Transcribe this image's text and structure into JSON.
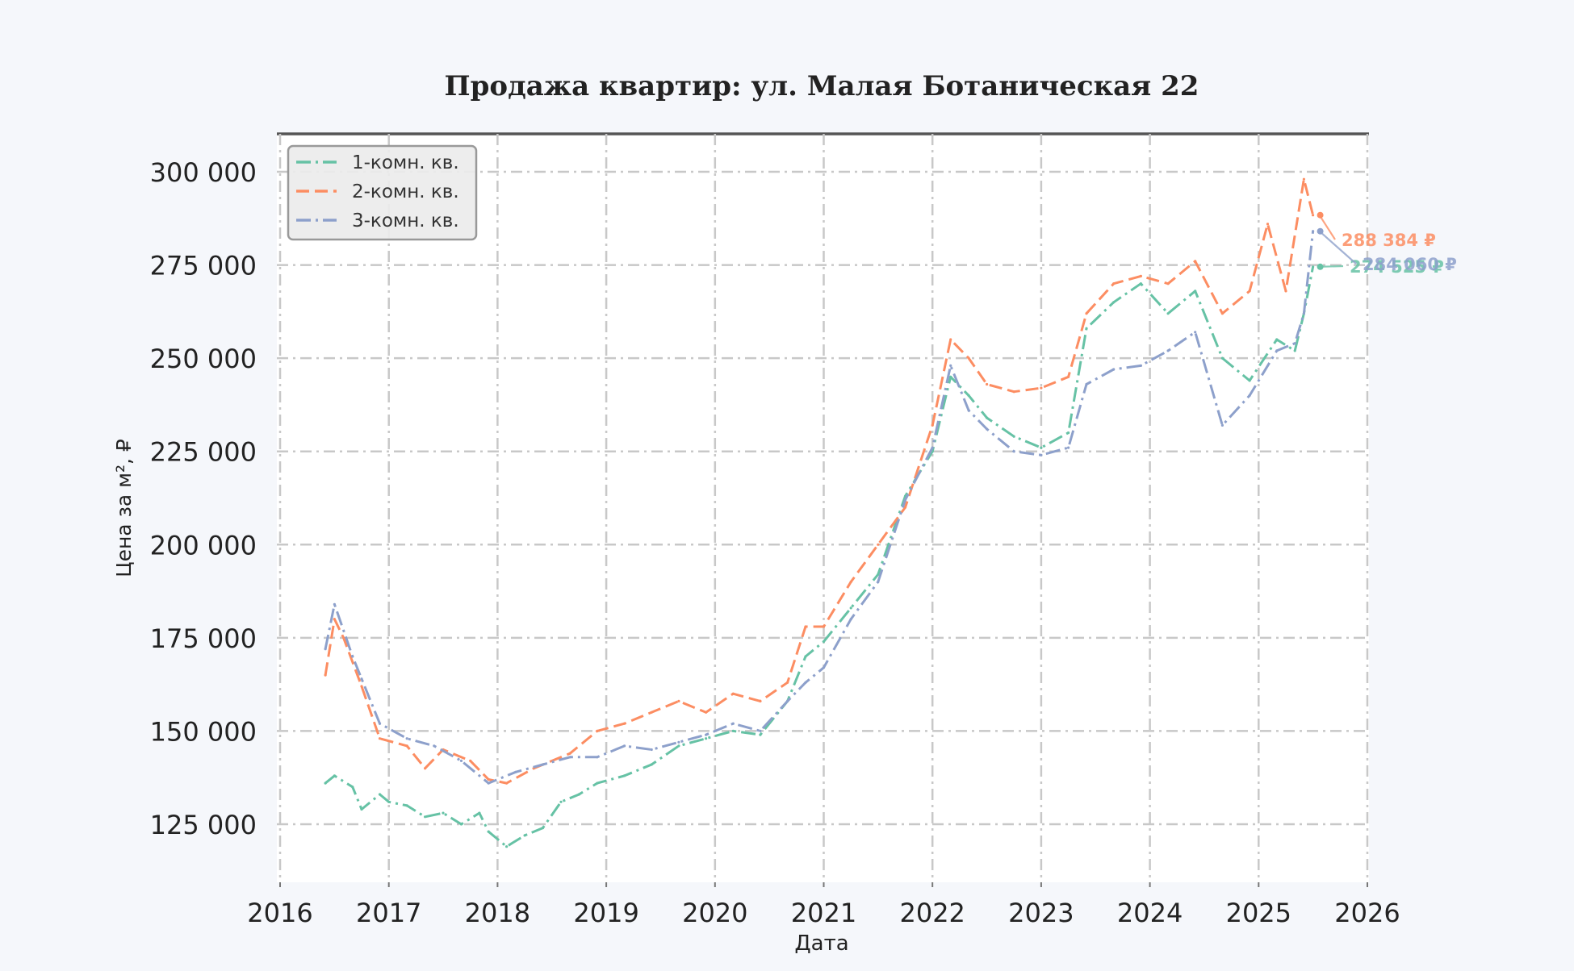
{
  "chart_data": {
    "type": "line",
    "title": "Продажа квартир: ул. Малая Ботаническая 22",
    "xlabel": "Дата",
    "ylabel": "Цена за м², ₽",
    "x_ticks": [
      "2016",
      "2017",
      "2018",
      "2019",
      "2020",
      "2021",
      "2022",
      "2023",
      "2024",
      "2025",
      "2026"
    ],
    "y_ticks": [
      "125 000",
      "150 000",
      "175 000",
      "200 000",
      "225 000",
      "250 000",
      "275 000",
      "300 000"
    ],
    "xlim": [
      "2016-01",
      "2026-01"
    ],
    "ylim": [
      110000,
      310000
    ],
    "grid": true,
    "legend_position": "top-left",
    "series": [
      {
        "name": "1-комн. кв.",
        "color": "#66c2a5",
        "dash": "dashdot",
        "end_label": "274 525 ₽",
        "points": [
          [
            "2016-06",
            136000
          ],
          [
            "2016-07",
            138000
          ],
          [
            "2016-09",
            135000
          ],
          [
            "2016-10",
            129000
          ],
          [
            "2016-12",
            133000
          ],
          [
            "2017-01",
            131000
          ],
          [
            "2017-03",
            130000
          ],
          [
            "2017-05",
            127000
          ],
          [
            "2017-07",
            128000
          ],
          [
            "2017-09",
            125000
          ],
          [
            "2017-11",
            128000
          ],
          [
            "2017-12",
            123000
          ],
          [
            "2018-02",
            119000
          ],
          [
            "2018-04",
            122000
          ],
          [
            "2018-06",
            124000
          ],
          [
            "2018-08",
            131000
          ],
          [
            "2018-10",
            133000
          ],
          [
            "2018-12",
            136000
          ],
          [
            "2019-03",
            138000
          ],
          [
            "2019-06",
            141000
          ],
          [
            "2019-09",
            146000
          ],
          [
            "2019-12",
            148000
          ],
          [
            "2020-03",
            150000
          ],
          [
            "2020-06",
            149000
          ],
          [
            "2020-09",
            158000
          ],
          [
            "2020-11",
            170000
          ],
          [
            "2021-01",
            174000
          ],
          [
            "2021-04",
            183000
          ],
          [
            "2021-07",
            192000
          ],
          [
            "2021-10",
            213000
          ],
          [
            "2022-01",
            225000
          ],
          [
            "2022-03",
            245000
          ],
          [
            "2022-05",
            240000
          ],
          [
            "2022-07",
            234000
          ],
          [
            "2022-10",
            229000
          ],
          [
            "2023-01",
            226000
          ],
          [
            "2023-04",
            230000
          ],
          [
            "2023-06",
            258000
          ],
          [
            "2023-09",
            265000
          ],
          [
            "2023-12",
            270000
          ],
          [
            "2024-03",
            262000
          ],
          [
            "2024-06",
            268000
          ],
          [
            "2024-09",
            250000
          ],
          [
            "2024-12",
            244000
          ],
          [
            "2025-03",
            255000
          ],
          [
            "2025-05",
            252000
          ],
          [
            "2025-06",
            262000
          ],
          [
            "2025-07",
            274525
          ]
        ]
      },
      {
        "name": "2-комн. кв.",
        "color": "#fc8d62",
        "dash": "dashed",
        "end_label": "288 384 ₽",
        "points": [
          [
            "2016-06",
            165000
          ],
          [
            "2016-07",
            180000
          ],
          [
            "2016-08",
            175000
          ],
          [
            "2016-10",
            162000
          ],
          [
            "2016-12",
            148000
          ],
          [
            "2017-03",
            146000
          ],
          [
            "2017-05",
            140000
          ],
          [
            "2017-07",
            145000
          ],
          [
            "2017-10",
            142000
          ],
          [
            "2017-12",
            137000
          ],
          [
            "2018-02",
            136000
          ],
          [
            "2018-05",
            140000
          ],
          [
            "2018-09",
            144000
          ],
          [
            "2018-12",
            150000
          ],
          [
            "2019-03",
            152000
          ],
          [
            "2019-06",
            155000
          ],
          [
            "2019-09",
            158000
          ],
          [
            "2019-12",
            155000
          ],
          [
            "2020-03",
            160000
          ],
          [
            "2020-06",
            158000
          ],
          [
            "2020-09",
            163000
          ],
          [
            "2020-11",
            178000
          ],
          [
            "2021-01",
            178000
          ],
          [
            "2021-04",
            190000
          ],
          [
            "2021-07",
            200000
          ],
          [
            "2021-10",
            210000
          ],
          [
            "2022-01",
            232000
          ],
          [
            "2022-03",
            255000
          ],
          [
            "2022-05",
            250000
          ],
          [
            "2022-07",
            243000
          ],
          [
            "2022-10",
            241000
          ],
          [
            "2023-01",
            242000
          ],
          [
            "2023-04",
            245000
          ],
          [
            "2023-06",
            262000
          ],
          [
            "2023-09",
            270000
          ],
          [
            "2023-12",
            272000
          ],
          [
            "2024-03",
            270000
          ],
          [
            "2024-06",
            276000
          ],
          [
            "2024-09",
            262000
          ],
          [
            "2024-12",
            268000
          ],
          [
            "2025-02",
            286000
          ],
          [
            "2025-04",
            268000
          ],
          [
            "2025-06",
            298000
          ],
          [
            "2025-07",
            288384
          ]
        ]
      },
      {
        "name": "3-комн. кв.",
        "color": "#8da0cb",
        "dash": "dashdot",
        "end_label": "284 060 ₽",
        "points": [
          [
            "2016-06",
            172000
          ],
          [
            "2016-07",
            184000
          ],
          [
            "2016-09",
            170000
          ],
          [
            "2016-10",
            164000
          ],
          [
            "2016-12",
            152000
          ],
          [
            "2017-03",
            148000
          ],
          [
            "2017-06",
            146000
          ],
          [
            "2017-09",
            142000
          ],
          [
            "2017-12",
            136000
          ],
          [
            "2018-03",
            139000
          ],
          [
            "2018-06",
            141000
          ],
          [
            "2018-09",
            143000
          ],
          [
            "2018-12",
            143000
          ],
          [
            "2019-03",
            146000
          ],
          [
            "2019-06",
            145000
          ],
          [
            "2019-09",
            147000
          ],
          [
            "2019-12",
            149000
          ],
          [
            "2020-03",
            152000
          ],
          [
            "2020-06",
            150000
          ],
          [
            "2020-09",
            158000
          ],
          [
            "2020-11",
            163000
          ],
          [
            "2021-01",
            167000
          ],
          [
            "2021-04",
            180000
          ],
          [
            "2021-07",
            190000
          ],
          [
            "2021-10",
            212000
          ],
          [
            "2022-01",
            226000
          ],
          [
            "2022-03",
            248000
          ],
          [
            "2022-05",
            236000
          ],
          [
            "2022-07",
            231000
          ],
          [
            "2022-10",
            225000
          ],
          [
            "2023-01",
            224000
          ],
          [
            "2023-04",
            226000
          ],
          [
            "2023-06",
            243000
          ],
          [
            "2023-09",
            247000
          ],
          [
            "2023-12",
            248000
          ],
          [
            "2024-03",
            252000
          ],
          [
            "2024-06",
            257000
          ],
          [
            "2024-09",
            232000
          ],
          [
            "2024-12",
            240000
          ],
          [
            "2025-03",
            252000
          ],
          [
            "2025-05",
            254000
          ],
          [
            "2025-06",
            262000
          ],
          [
            "2025-07",
            284060
          ]
        ]
      }
    ]
  }
}
